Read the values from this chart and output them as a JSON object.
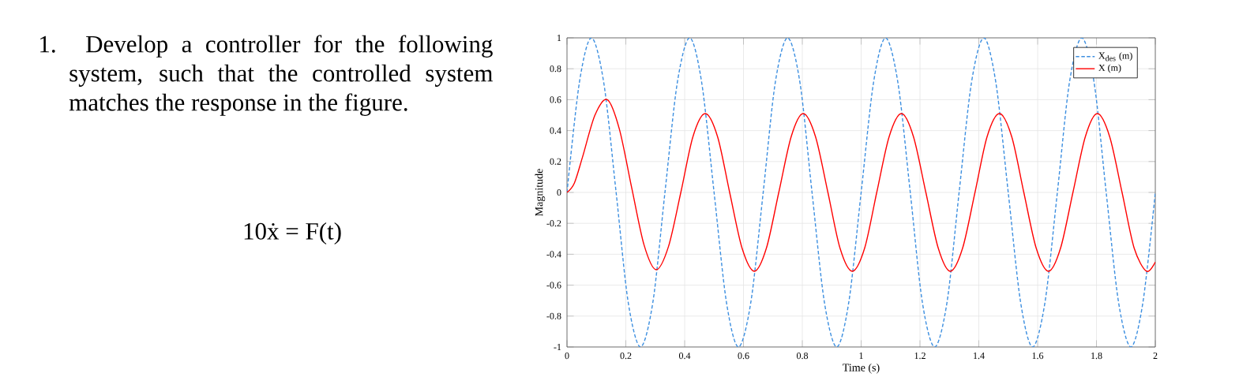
{
  "chart_data": {
    "type": "line",
    "xlabel": "Time (s)",
    "ylabel": "Magnitude",
    "annotations": [
      "1. Develop a controller for the following system, such that the controlled system matches the response in the figure.",
      "10ẋ = F(t)"
    ],
    "xlim": [
      0,
      2
    ],
    "ylim": [
      -1,
      1
    ],
    "xticks": [
      0,
      0.2,
      0.4,
      0.6,
      0.8,
      1,
      1.2,
      1.4,
      1.6,
      1.8,
      2
    ],
    "yticks": [
      -1,
      -0.8,
      -0.6,
      -0.4,
      -0.2,
      0,
      0.2,
      0.4,
      0.6,
      0.8,
      1
    ],
    "grid": true,
    "legend": "top right",
    "marker": "none",
    "series": [
      {
        "name": "X$_{des}$ (m)",
        "color": "#3d8fe0",
        "line_style": "dashed",
        "x": [
          0,
          0.042,
          0.083,
          0.125,
          0.167,
          0.208,
          0.25,
          0.292,
          0.333,
          0.375,
          0.417,
          0.458,
          0.5,
          0.542,
          0.583,
          0.625,
          0.667,
          0.708,
          0.75,
          0.792,
          0.833,
          0.875,
          0.917,
          0.958,
          1,
          1.042,
          1.083,
          1.125,
          1.167,
          1.208,
          1.25,
          1.292,
          1.333,
          1.375,
          1.417,
          1.458,
          1.5,
          1.542,
          1.583,
          1.625,
          1.667,
          1.708,
          1.75,
          1.792,
          1.833,
          1.875,
          1.917,
          1.958,
          2
        ],
        "values": [
          0,
          0.71,
          1,
          0.71,
          0,
          -0.71,
          -1,
          -0.71,
          0,
          0.71,
          1,
          0.71,
          0,
          -0.71,
          -1,
          -0.71,
          0,
          0.71,
          1,
          0.71,
          0,
          -0.71,
          -1,
          -0.71,
          0,
          0.71,
          1,
          0.71,
          0,
          -0.71,
          -1,
          -0.71,
          0,
          0.71,
          1,
          0.71,
          0,
          -0.71,
          -1,
          -0.71,
          0,
          0.71,
          1,
          0.71,
          0,
          -0.71,
          -1,
          -0.71,
          0
        ]
      },
      {
        "name": "X (m)",
        "color": "#ff0000",
        "line_style": "solid",
        "x": [
          0,
          0.025,
          0.053,
          0.095,
          0.137,
          0.178,
          0.22,
          0.262,
          0.303,
          0.345,
          0.387,
          0.428,
          0.47,
          0.512,
          0.553,
          0.595,
          0.637,
          0.678,
          0.72,
          0.762,
          0.803,
          0.845,
          0.887,
          0.928,
          0.97,
          1.012,
          1.053,
          1.095,
          1.137,
          1.178,
          1.22,
          1.262,
          1.303,
          1.345,
          1.387,
          1.428,
          1.47,
          1.512,
          1.553,
          1.595,
          1.637,
          1.678,
          1.72,
          1.762,
          1.803,
          1.845,
          1.887,
          1.928,
          1.97,
          2
        ],
        "values": [
          0,
          0.06,
          0.23,
          0.5,
          0.6,
          0.41,
          0.03,
          -0.34,
          -0.5,
          -0.35,
          0,
          0.36,
          0.51,
          0.36,
          0,
          -0.36,
          -0.51,
          -0.36,
          0,
          0.36,
          0.51,
          0.36,
          0,
          -0.36,
          -0.51,
          -0.36,
          0,
          0.36,
          0.51,
          0.36,
          0,
          -0.36,
          -0.51,
          -0.36,
          0,
          0.36,
          0.51,
          0.36,
          0,
          -0.36,
          -0.51,
          -0.36,
          0,
          0.36,
          0.51,
          0.36,
          0,
          -0.36,
          -0.51,
          -0.45
        ]
      }
    ]
  }
}
